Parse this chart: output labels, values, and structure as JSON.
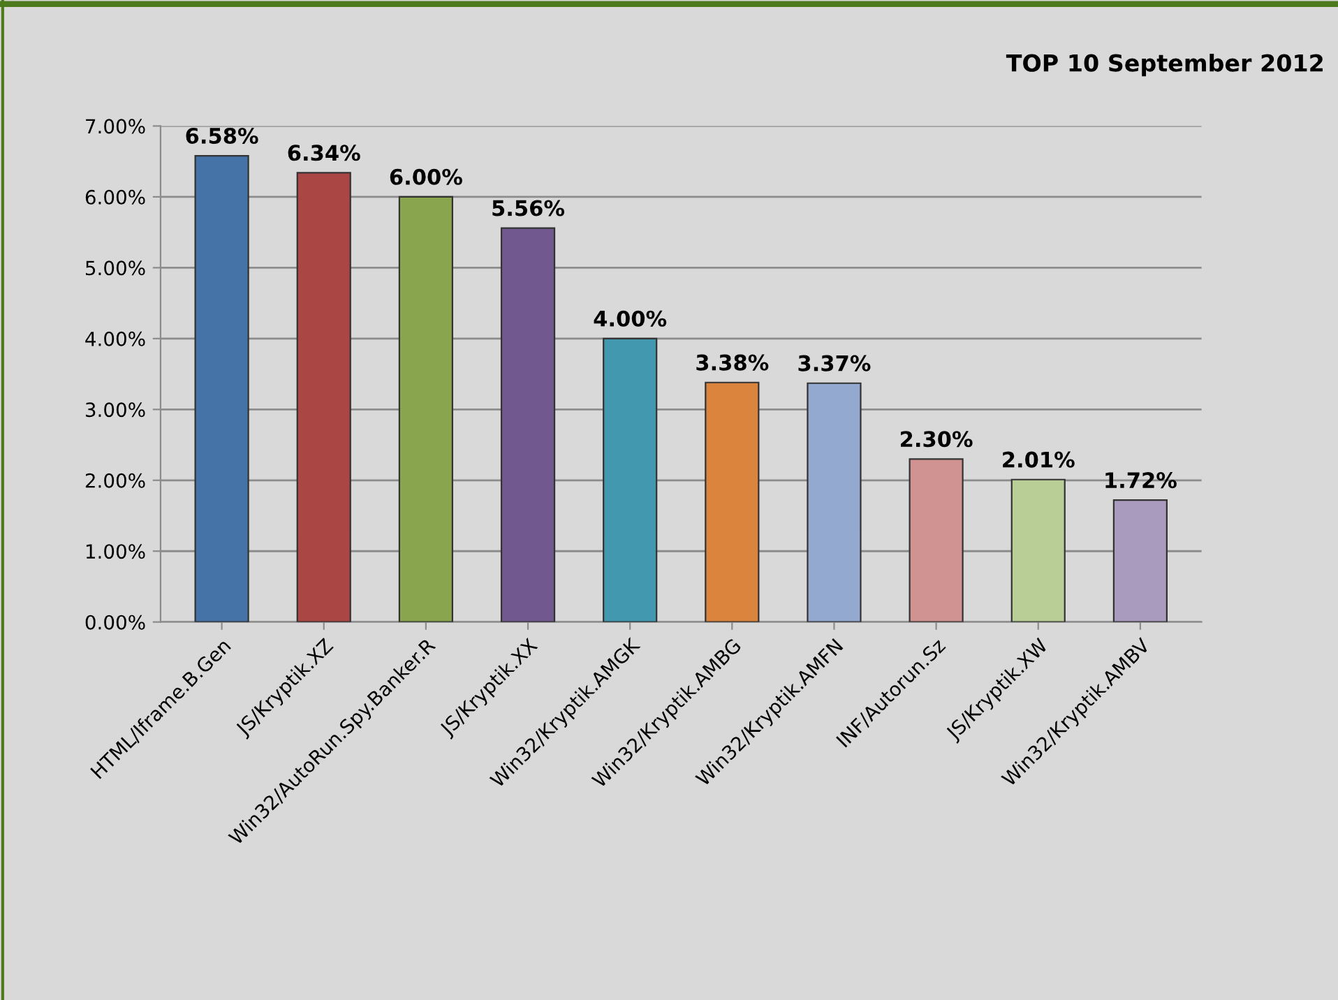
{
  "chart_data": {
    "type": "bar",
    "title": "TOP 10 September 2012",
    "categories": [
      "HTML/Iframe.B.Gen",
      "JS/Kryptik.XZ",
      "Win32/AutoRun.Spy.Banker.R",
      "JS/Kryptik.XX",
      "Win32/Kryptik.AMGK",
      "Win32/Kryptik.AMBG",
      "Win32/Kryptik.AMFN",
      "INF/Autorun.Sz",
      "JS/Kryptik.XW",
      "Win32/Kryptik.AMBV"
    ],
    "values": [
      6.58,
      6.34,
      6.0,
      5.56,
      4.0,
      3.38,
      3.37,
      2.3,
      2.01,
      1.72
    ],
    "colors": [
      "#4572a7",
      "#aa4643",
      "#89a54e",
      "#71588f",
      "#4198af",
      "#db843d",
      "#93a9cf",
      "#d19392",
      "#b9cd96",
      "#a99bbd"
    ],
    "value_labels": [
      "6.58%",
      "6.34%",
      "6.00%",
      "5.56%",
      "4.00%",
      "3.38%",
      "3.37%",
      "2.30%",
      "2.01%",
      "1.72%"
    ],
    "ylim": [
      0,
      7
    ],
    "yticks": [
      {
        "value": 0,
        "label": "0.00%"
      },
      {
        "value": 1,
        "label": "1.00%"
      },
      {
        "value": 2,
        "label": "2.00%"
      },
      {
        "value": 3,
        "label": "3.00%"
      },
      {
        "value": 4,
        "label": "4.00%"
      },
      {
        "value": 5,
        "label": "5.00%"
      },
      {
        "value": 6,
        "label": "6.00%"
      },
      {
        "value": 7,
        "label": "7.00%"
      }
    ],
    "grid": "y",
    "legend": false
  }
}
